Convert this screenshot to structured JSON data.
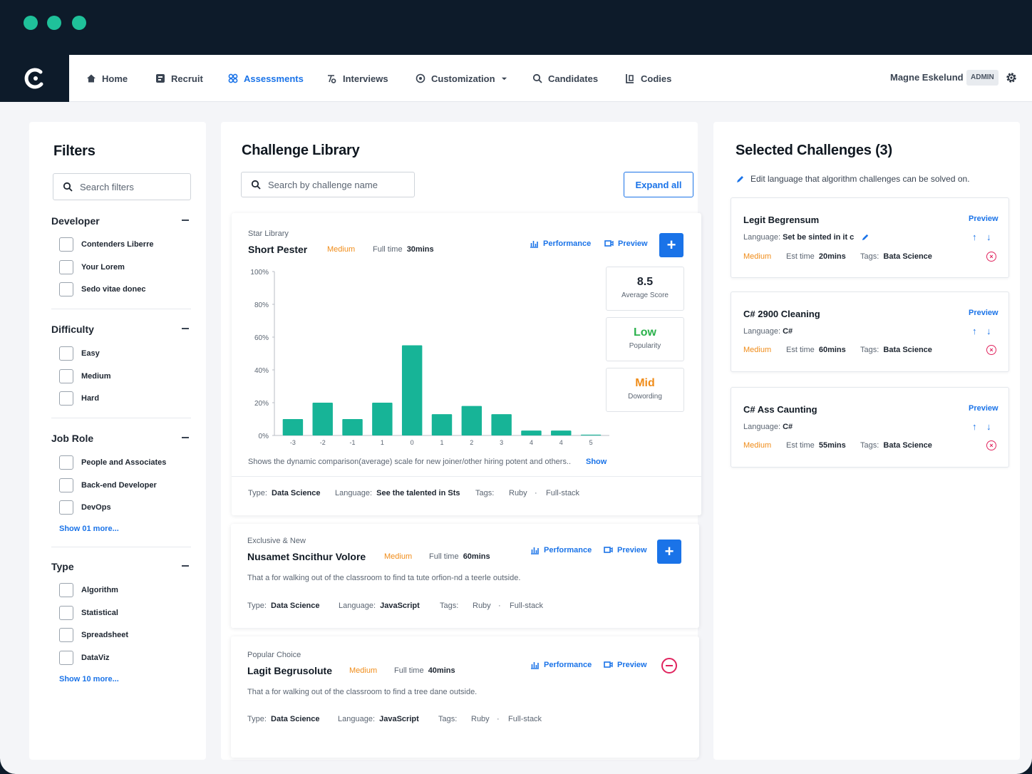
{
  "nav": {
    "items": [
      {
        "label": "Home",
        "icon": "home-icon"
      },
      {
        "label": "Recruit",
        "icon": "recruit-icon"
      },
      {
        "label": "Assessments",
        "icon": "assessments-icon",
        "active": true
      },
      {
        "label": "Interviews",
        "icon": "interviews-icon"
      },
      {
        "label": "Customization",
        "icon": "customization-icon"
      },
      {
        "label": "Candidates",
        "icon": "search-icon"
      },
      {
        "label": "Codies",
        "icon": "codies-icon"
      }
    ],
    "user_name": "Magne Eskelund",
    "role_badge": "ADMIN"
  },
  "filters": {
    "title": "Filters",
    "search_placeholder": "Search filters",
    "groups": [
      {
        "title": "Developer",
        "options": [
          "Contenders Liberre",
          "Your Lorem",
          "Sedo vitae donec"
        ]
      },
      {
        "title": "Difficulty",
        "options": [
          "Easy",
          "Medium",
          "Hard"
        ]
      },
      {
        "title": "Job Role",
        "options": [
          "People and Associates",
          "Back-end Developer",
          "DevOps"
        ],
        "more": "Show 01 more..."
      },
      {
        "title": "Type",
        "options": [
          "Algorithm",
          "Statistical",
          "Spreadsheet",
          "DataViz"
        ],
        "more": "Show 10 more..."
      }
    ]
  },
  "library": {
    "title": "Challenge Library",
    "search_placeholder": "Search by challenge name",
    "expand_label": "Expand all",
    "performance_label": "Performance",
    "preview_label": "Preview",
    "cards": [
      {
        "kicker": "Star Library",
        "title": "Short Pester",
        "difficulty": "Medium",
        "time_label": "Full time",
        "time_value": "30mins",
        "stats": [
          {
            "value": "8.5",
            "label": "Average Score",
            "color": "#111a24"
          },
          {
            "value": "Low",
            "label": "Popularity",
            "color": "#2bb24c"
          },
          {
            "value": "Mid",
            "label": "Dowording",
            "color": "#f08c19"
          }
        ],
        "chart_caption": "Shows the dynamic comparison(average) scale for new joiner/other hiring potent and others..",
        "show_label": "Show",
        "type_label": "Type:",
        "type_value": "Data Science",
        "lang_label": "Language:",
        "lang_value": "See the talented in Sts",
        "tags_label": "Tags:",
        "tags": [
          "Ruby",
          "Full-stack"
        ]
      },
      {
        "kicker": "Exclusive & New",
        "title": "Nusamet Sncithur Volore",
        "difficulty": "Medium",
        "time_label": "Full time",
        "time_value": "60mins",
        "description": "That a for walking out of the classroom to find ta tute orfion-nd a teerle outside.",
        "type_label": "Type:",
        "type_value": "Data Science",
        "lang_label": "Language:",
        "lang_value": "JavaScript",
        "tags_label": "Tags:",
        "tags": [
          "Ruby",
          "Full-stack"
        ]
      },
      {
        "kicker": "Popular Choice",
        "title": "Lagit Begrusolute",
        "difficulty": "Medium",
        "time_label": "Full time",
        "time_value": "40mins",
        "description": "That a for walking out of the classroom to find a tree dane outside.",
        "type_label": "Type:",
        "type_value": "Data Science",
        "lang_label": "Language:",
        "lang_value": "JavaScript",
        "tags_label": "Tags:",
        "tags": [
          "Ruby",
          "Full-stack"
        ]
      }
    ]
  },
  "chart_data": {
    "type": "bar",
    "categories": [
      "-3",
      "-2",
      "-1",
      "1",
      "0",
      "1",
      "2",
      "3",
      "4",
      "4",
      "5"
    ],
    "values": [
      10,
      20,
      10,
      20,
      55,
      13,
      18,
      13,
      3,
      3,
      0.5
    ],
    "ylim": [
      0,
      100
    ],
    "yticks": [
      "0%",
      "20%",
      "40%",
      "60%",
      "80%",
      "100%"
    ],
    "color": "#17b497"
  },
  "selected": {
    "title": "Selected Challenges (3)",
    "hint": "Edit language that algorithm challenges can be solved on.",
    "preview_label": "Preview",
    "lang_label": "Language:",
    "est_label": "Est time",
    "tags_label": "Tags:",
    "cards": [
      {
        "title": "Legit Begrensum",
        "language": "Set be sinted in it c",
        "difficulty": "Medium",
        "est": "20mins",
        "tag": "Bata Science"
      },
      {
        "title": "C# 2900 Cleaning",
        "language": "C#",
        "difficulty": "Medium",
        "est": "60mins",
        "tag": "Bata Science"
      },
      {
        "title": "C# Ass Caunting",
        "language": "C#",
        "difficulty": "Medium",
        "est": "55mins",
        "tag": "Bata Science"
      }
    ]
  },
  "colors": {
    "accent": "#1a73e8",
    "brand_dark": "#0d1b2a",
    "brand_green": "#1fc19a",
    "medium": "#f08c19",
    "remove": "#e0245e"
  }
}
